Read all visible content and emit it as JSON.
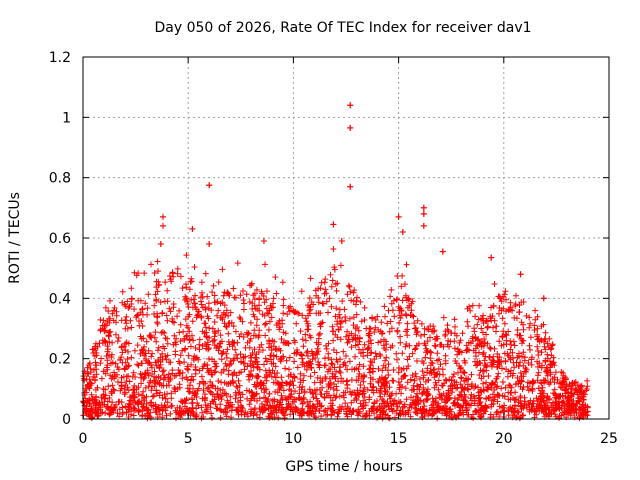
{
  "chart_data": {
    "type": "scatter",
    "title": "Day 050 of 2026, Rate Of TEC Index for receiver dav1",
    "xlabel": "GPS time / hours",
    "ylabel": "ROTI / TECUs",
    "xlim": [
      0,
      25
    ],
    "ylim": [
      0,
      1.2
    ],
    "x_ticks": [
      0,
      5,
      10,
      15,
      20,
      25
    ],
    "y_ticks": [
      0,
      0.2,
      0.4,
      0.6,
      0.8,
      1,
      1.2
    ],
    "x_tick_labels": [
      "0",
      "5",
      "10",
      "15",
      "20",
      "25"
    ],
    "y_tick_labels": [
      "0",
      "0.2",
      "0.4",
      "0.6",
      "0.8",
      "1",
      "1.2"
    ],
    "grid": true,
    "marker": "plus",
    "series_color": "#ff0000",
    "series": [
      {
        "name": "ROTI",
        "x_range": [
          0,
          24
        ],
        "notable_points": [
          {
            "x": 12.7,
            "y": 1.04
          },
          {
            "x": 12.7,
            "y": 0.965
          },
          {
            "x": 12.7,
            "y": 0.77
          },
          {
            "x": 6.0,
            "y": 0.775
          },
          {
            "x": 3.8,
            "y": 0.67
          },
          {
            "x": 3.8,
            "y": 0.64
          },
          {
            "x": 3.7,
            "y": 0.58
          },
          {
            "x": 5.2,
            "y": 0.63
          },
          {
            "x": 6.0,
            "y": 0.58
          },
          {
            "x": 8.6,
            "y": 0.59
          },
          {
            "x": 11.9,
            "y": 0.645
          },
          {
            "x": 12.3,
            "y": 0.59
          },
          {
            "x": 15.0,
            "y": 0.67
          },
          {
            "x": 15.2,
            "y": 0.62
          },
          {
            "x": 16.2,
            "y": 0.7
          },
          {
            "x": 16.2,
            "y": 0.68
          },
          {
            "x": 16.2,
            "y": 0.64
          },
          {
            "x": 17.1,
            "y": 0.555
          },
          {
            "x": 19.4,
            "y": 0.535
          },
          {
            "x": 20.8,
            "y": 0.48
          },
          {
            "x": 21.9,
            "y": 0.4
          }
        ],
        "envelope_hours": [
          0,
          1,
          2,
          3,
          4,
          5,
          6,
          7,
          8,
          9,
          10,
          11,
          12,
          13,
          14,
          15,
          16,
          17,
          18,
          19,
          20,
          21,
          22,
          23,
          24
        ],
        "envelope_roti": [
          0.12,
          0.32,
          0.38,
          0.4,
          0.48,
          0.45,
          0.42,
          0.4,
          0.44,
          0.4,
          0.36,
          0.4,
          0.5,
          0.4,
          0.3,
          0.5,
          0.3,
          0.28,
          0.28,
          0.34,
          0.4,
          0.35,
          0.28,
          0.12,
          0.1
        ],
        "cluster_median_roti": 0.1
      }
    ]
  }
}
